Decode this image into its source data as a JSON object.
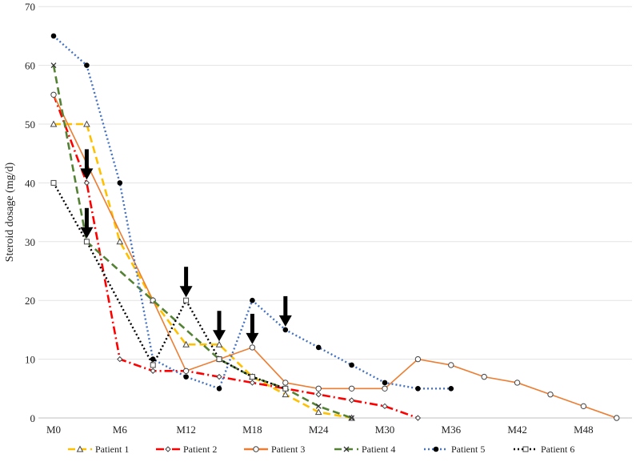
{
  "chart_data": {
    "type": "line",
    "title": "",
    "xlabel": "",
    "ylabel": "Steroid dosage (mg/d)",
    "ylim": [
      0,
      70
    ],
    "xlim": [
      0,
      52
    ],
    "grid": true,
    "legend_position": "bottom",
    "y_ticks": [
      0,
      10,
      20,
      30,
      40,
      50,
      60,
      70
    ],
    "x_ticks": [
      {
        "label": "M0",
        "month": 0
      },
      {
        "label": "M6",
        "month": 6
      },
      {
        "label": "M12",
        "month": 12
      },
      {
        "label": "M18",
        "month": 18
      },
      {
        "label": "M24",
        "month": 24
      },
      {
        "label": "M30",
        "month": 30
      },
      {
        "label": "M36",
        "month": 36
      },
      {
        "label": "M42",
        "month": 42
      },
      {
        "label": "M48",
        "month": 48
      }
    ],
    "series": [
      {
        "name": "Patient 1",
        "color": "#FFC000",
        "marker": "triangle",
        "dash": "dashed",
        "points": [
          [
            0,
            50
          ],
          [
            3,
            50
          ],
          [
            6,
            30
          ],
          [
            9,
            20
          ],
          [
            12,
            12.5
          ],
          [
            15,
            12.5
          ],
          [
            18,
            7
          ],
          [
            21,
            4
          ],
          [
            24,
            1
          ],
          [
            27,
            0
          ]
        ]
      },
      {
        "name": "Patient 2",
        "color": "#FF0000",
        "marker": "diamond",
        "dash": "dashdot",
        "points": [
          [
            0,
            55
          ],
          [
            3,
            40
          ],
          [
            6,
            10
          ],
          [
            9,
            8
          ],
          [
            12,
            8
          ],
          [
            15,
            7
          ],
          [
            18,
            6
          ],
          [
            21,
            5
          ],
          [
            24,
            4
          ],
          [
            27,
            3
          ],
          [
            30,
            2
          ],
          [
            33,
            0
          ]
        ]
      },
      {
        "name": "Patient 3",
        "color": "#ED7D31",
        "marker": "circle",
        "dash": "solid",
        "points": [
          [
            0,
            55
          ],
          [
            9,
            20
          ],
          [
            12,
            8
          ],
          [
            15,
            10
          ],
          [
            18,
            12
          ],
          [
            21,
            6
          ],
          [
            24,
            5
          ],
          [
            27,
            5
          ],
          [
            30,
            5
          ],
          [
            33,
            10
          ],
          [
            36,
            9
          ],
          [
            39,
            7
          ],
          [
            42,
            6
          ],
          [
            45,
            4
          ],
          [
            48,
            2
          ],
          [
            51,
            0
          ]
        ]
      },
      {
        "name": "Patient 4",
        "color": "#548235",
        "marker": "x",
        "dash": "dashed",
        "points": [
          [
            0,
            60
          ],
          [
            3,
            30
          ],
          [
            15,
            10
          ],
          [
            18,
            7
          ],
          [
            21,
            5
          ],
          [
            24,
            2
          ],
          [
            27,
            0
          ]
        ]
      },
      {
        "name": "Patient 5",
        "color": "#4472C4",
        "marker": "filled-circle",
        "dash": "dotted",
        "points": [
          [
            0,
            65
          ],
          [
            3,
            60
          ],
          [
            6,
            40
          ],
          [
            9,
            10
          ],
          [
            12,
            7
          ],
          [
            15,
            5
          ],
          [
            18,
            20
          ],
          [
            21,
            15
          ],
          [
            24,
            12
          ],
          [
            27,
            9
          ],
          [
            30,
            6
          ],
          [
            33,
            5
          ],
          [
            36,
            5
          ]
        ]
      },
      {
        "name": "Patient 6",
        "color": "#000000",
        "marker": "square",
        "dash": "dotted",
        "points": [
          [
            0,
            40
          ],
          [
            3,
            30
          ],
          [
            9,
            9
          ],
          [
            12,
            20
          ],
          [
            15,
            10
          ],
          [
            18,
            7
          ],
          [
            21,
            5
          ]
        ]
      }
    ],
    "annotations": [
      {
        "type": "arrow",
        "month": 3,
        "value": 40
      },
      {
        "type": "arrow",
        "month": 3,
        "value": 30
      },
      {
        "type": "arrow",
        "month": 12,
        "value": 20
      },
      {
        "type": "arrow",
        "month": 15,
        "value": 12.5
      },
      {
        "type": "arrow",
        "month": 18,
        "value": 12
      },
      {
        "type": "arrow",
        "month": 21,
        "value": 15
      }
    ]
  }
}
